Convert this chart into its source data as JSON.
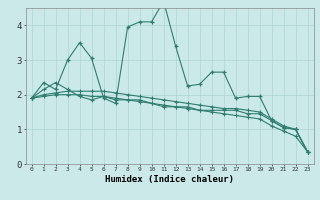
{
  "x": [
    0,
    1,
    2,
    3,
    4,
    5,
    6,
    7,
    8,
    9,
    10,
    11,
    12,
    13,
    14,
    15,
    16,
    17,
    18,
    19,
    20,
    21,
    22,
    23
  ],
  "line1": [
    1.9,
    2.35,
    2.15,
    3.0,
    3.5,
    3.05,
    1.9,
    1.75,
    3.95,
    4.1,
    4.1,
    4.7,
    3.4,
    2.25,
    2.3,
    2.65,
    2.65,
    1.9,
    1.95,
    1.95,
    1.25,
    1.05,
    1.0,
    0.35
  ],
  "line2": [
    1.9,
    2.15,
    2.35,
    2.15,
    1.95,
    1.85,
    1.95,
    1.85,
    1.85,
    1.85,
    1.75,
    1.65,
    1.65,
    1.65,
    1.55,
    1.55,
    1.55,
    1.55,
    1.45,
    1.45,
    1.25,
    1.05,
    1.0,
    0.35
  ],
  "line3": [
    1.9,
    2.0,
    2.05,
    2.1,
    2.1,
    2.1,
    2.1,
    2.05,
    2.0,
    1.95,
    1.9,
    1.85,
    1.8,
    1.75,
    1.7,
    1.65,
    1.6,
    1.6,
    1.55,
    1.5,
    1.3,
    1.1,
    1.0,
    0.35
  ],
  "line4": [
    1.9,
    1.95,
    2.0,
    2.0,
    2.0,
    1.95,
    1.95,
    1.9,
    1.85,
    1.8,
    1.75,
    1.7,
    1.65,
    1.6,
    1.55,
    1.5,
    1.45,
    1.4,
    1.35,
    1.3,
    1.1,
    0.95,
    0.8,
    0.35
  ],
  "color": "#2e7d6e",
  "bg_color": "#cce9e9",
  "grid_color": "#add4d4",
  "xlabel": "Humidex (Indice chaleur)",
  "ylim": [
    0,
    4.5
  ],
  "xlim": [
    -0.5,
    23.5
  ],
  "xticks": [
    0,
    1,
    2,
    3,
    4,
    5,
    6,
    7,
    8,
    9,
    10,
    11,
    12,
    13,
    14,
    15,
    16,
    17,
    18,
    19,
    20,
    21,
    22,
    23
  ],
  "yticks": [
    0,
    1,
    2,
    3,
    4
  ]
}
